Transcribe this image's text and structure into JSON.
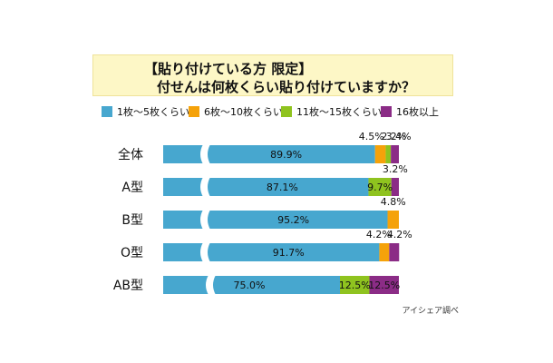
{
  "title": {
    "line1": "【貼り付けている方 限定】",
    "line2": "付せんは何枚くらい貼り付けていますか？"
  },
  "source_note": "アイシェア調べ",
  "chart_data": {
    "type": "bar",
    "orientation": "horizontal",
    "stacked": true,
    "percent_scale": true,
    "axis_break": true,
    "legend_position": "top",
    "categories": [
      "全体",
      "A型",
      "B型",
      "O型",
      "AB型"
    ],
    "series": [
      {
        "name": "1枚〜5枚くらい",
        "color": "#47a7cf",
        "values": [
          89.9,
          87.1,
          95.2,
          91.7,
          75.0
        ]
      },
      {
        "name": "6枚〜10枚くらい",
        "color": "#f5a20a",
        "values": [
          4.5,
          0,
          4.8,
          4.2,
          0
        ]
      },
      {
        "name": "11枚〜15枚くらい",
        "color": "#8fc31f",
        "values": [
          2.2,
          9.7,
          0,
          0,
          12.5
        ]
      },
      {
        "name": "16枚以上",
        "color": "#8b2c86",
        "values": [
          3.4,
          3.2,
          0,
          4.2,
          12.5
        ]
      }
    ],
    "labels": [
      [
        "89.9%",
        "4.5%",
        "2.2%",
        "3.4%"
      ],
      [
        "87.1%",
        "",
        "9.7%",
        "3.2%"
      ],
      [
        "95.2%",
        "4.8%",
        "",
        ""
      ],
      [
        "91.7%",
        "4.2%",
        "",
        "4.2%"
      ],
      [
        "75.0%",
        "",
        "12.5%",
        "12.5%"
      ]
    ]
  }
}
